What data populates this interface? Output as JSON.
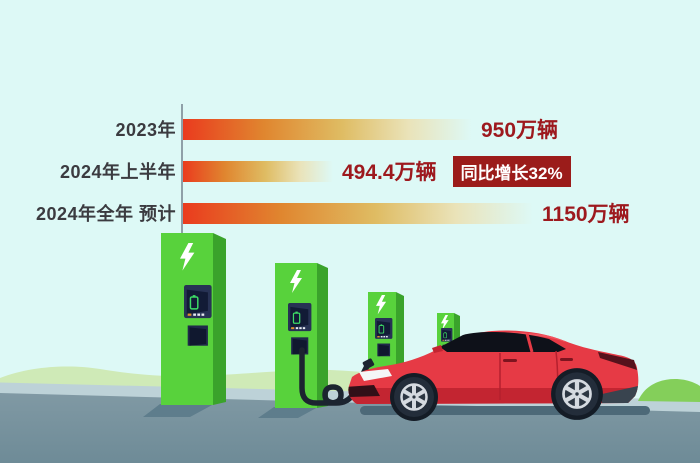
{
  "chart_data": {
    "type": "bar",
    "orientation": "horizontal",
    "title": "",
    "unit": "万辆",
    "categories": [
      "2023年",
      "2024年上半年",
      "2024年全年 预计"
    ],
    "values": [
      950,
      494.4,
      1150
    ],
    "value_labels": [
      "950万辆",
      "494.4万辆",
      "1150万辆"
    ],
    "xlim": [
      0,
      1150
    ],
    "grid": false,
    "legend": false,
    "rows": [
      {
        "label": "2023年",
        "value": 950,
        "value_label": "950万辆"
      },
      {
        "label": "2024年上半年",
        "value": 494.4,
        "value_label": "494.4万辆",
        "badge": "同比增长32%"
      },
      {
        "label": "2024年全年 预计",
        "value": 1150,
        "value_label": "1150万辆"
      }
    ],
    "annotations": [
      {
        "row_index": 1,
        "text": "同比增长32%"
      }
    ]
  },
  "colors": {
    "sky": "#ddf9f6",
    "hill": "#cfeab7",
    "mound": "#84cf5a",
    "band": "#bdd2d8",
    "road_top": "#8099a4",
    "road_bottom": "#6e8b97",
    "shadow": "#5e7d8c",
    "car_shadow": "#4d6978",
    "station_green": "#58d23c",
    "station_side": "#3aa32b",
    "station_panel": "#273254",
    "car_red": "#e63a45",
    "car_shade": "#c32531",
    "glass": "#0e1119",
    "cable": "#1c2430",
    "bar_red": "#ea3b1e",
    "label_color": "#3b3b40",
    "value_color": "#9d191e",
    "badge_bg": "#9b1c1a",
    "badge_text": "#ffffff",
    "axis": "#8fa0a8"
  },
  "illustration": {
    "theme": "electric-vehicle-charging",
    "stations_count": 4,
    "station_icon": "lightning-bolt-icon",
    "car": {
      "type": "red-electric-sedan",
      "state": "charging-via-cable"
    }
  }
}
